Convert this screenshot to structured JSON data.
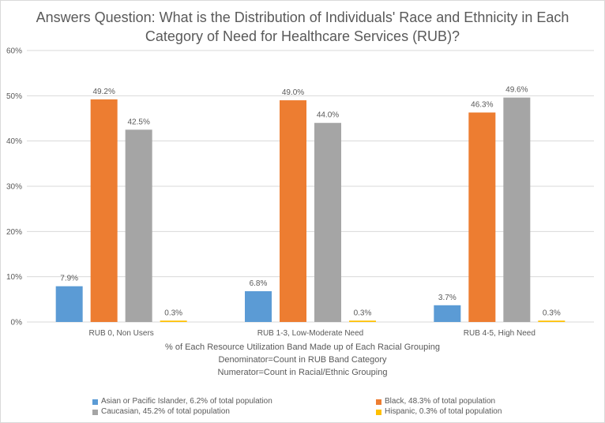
{
  "title_lines": [
    "Answers Question: What is the Distribution of Individuals' Race and Ethnicity in Each",
    "Category of Need for Healthcare Services (RUB)?"
  ],
  "xaxis_lines": [
    "% of Each Resource Utilization Band Made up of Each Racial Grouping",
    "Denominator=Count in RUB Band Category",
    "Numerator=Count in Racial/Ethnic Grouping"
  ],
  "chart_data": {
    "type": "bar",
    "title": "Answers Question: What is the Distribution of Individuals' Race and Ethnicity in Each Category of Need for Healthcare Services (RUB)?",
    "xlabel": "% of Each Resource Utilization Band Made up of Each Racial Grouping\nDenominator=Count in RUB Band Category\nNumerator=Count in Racial/Ethnic Grouping",
    "ylabel": "",
    "categories": [
      "RUB 0, Non Users",
      "RUB 1-3, Low-Moderate Need",
      "RUB 4-5, High Need"
    ],
    "ylim": [
      0,
      60
    ],
    "yticks": [
      0,
      10,
      20,
      30,
      40,
      50,
      60
    ],
    "ytick_labels": [
      "0%",
      "10%",
      "20%",
      "30%",
      "40%",
      "50%",
      "60%"
    ],
    "grid": true,
    "legend_position": "bottom",
    "series": [
      {
        "name": "Asian or Pacific Islander, 6.2% of total population",
        "color": "#5b9bd5",
        "values": [
          7.9,
          6.8,
          3.7
        ],
        "labels": [
          "7.9%",
          "6.8%",
          "3.7%"
        ]
      },
      {
        "name": "Black, 48.3% of total population",
        "color": "#ed7d31",
        "values": [
          49.2,
          49.0,
          46.3
        ],
        "labels": [
          "49.2%",
          "49.0%",
          "46.3%"
        ]
      },
      {
        "name": "Caucasian, 45.2% of total population",
        "color": "#a5a5a5",
        "values": [
          42.5,
          44.0,
          49.6
        ],
        "labels": [
          "42.5%",
          "44.0%",
          "49.6%"
        ]
      },
      {
        "name": "Hispanic, 0.3% of total population",
        "color": "#ffc000",
        "values": [
          0.3,
          0.3,
          0.3
        ],
        "labels": [
          "0.3%",
          "0.3%",
          "0.3%"
        ]
      }
    ]
  }
}
